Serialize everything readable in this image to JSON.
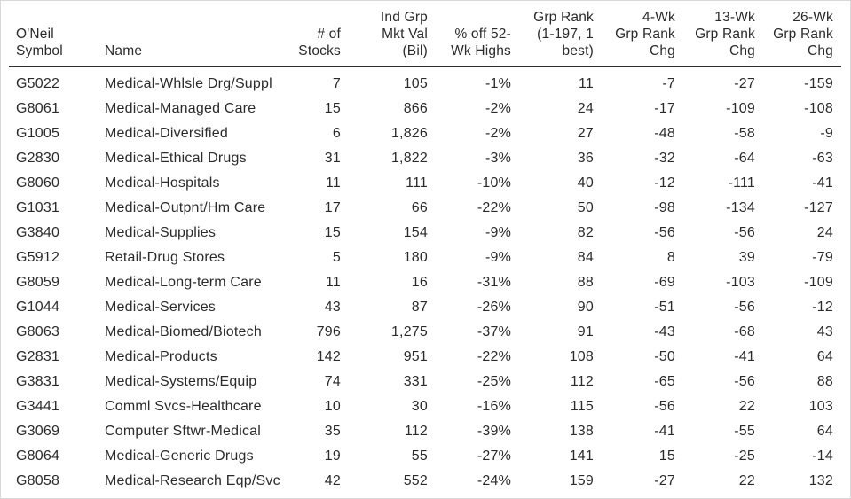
{
  "table": {
    "columns": [
      {
        "id": "symbol",
        "header": "O'Neil\nSymbol",
        "align": "left"
      },
      {
        "id": "name",
        "header": "Name",
        "align": "left"
      },
      {
        "id": "stocks",
        "header": "# of\nStocks",
        "align": "right"
      },
      {
        "id": "mkt_val",
        "header": "Ind Grp\nMkt Val\n(Bil)",
        "align": "right"
      },
      {
        "id": "pct_off",
        "header": "% off 52-\nWk Highs",
        "align": "right"
      },
      {
        "id": "grp_rank",
        "header": "Grp Rank\n(1-197, 1\nbest)",
        "align": "right"
      },
      {
        "id": "chg_4wk",
        "header": "4-Wk\nGrp Rank\nChg",
        "align": "right"
      },
      {
        "id": "chg_13wk",
        "header": "13-Wk\nGrp Rank\nChg",
        "align": "right"
      },
      {
        "id": "chg_26wk",
        "header": "26-Wk\nGrp Rank\nChg",
        "align": "right"
      }
    ],
    "rows": [
      [
        "G5022",
        "Medical-Whlsle Drg/Suppl",
        "7",
        "105",
        "-1%",
        "11",
        "-7",
        "-27",
        "-159"
      ],
      [
        "G8061",
        "Medical-Managed Care",
        "15",
        "866",
        "-2%",
        "24",
        "-17",
        "-109",
        "-108"
      ],
      [
        "G1005",
        "Medical-Diversified",
        "6",
        "1,826",
        "-2%",
        "27",
        "-48",
        "-58",
        "-9"
      ],
      [
        "G2830",
        "Medical-Ethical Drugs",
        "31",
        "1,822",
        "-3%",
        "36",
        "-32",
        "-64",
        "-63"
      ],
      [
        "G8060",
        "Medical-Hospitals",
        "11",
        "111",
        "-10%",
        "40",
        "-12",
        "-111",
        "-41"
      ],
      [
        "G1031",
        "Medical-Outpnt/Hm Care",
        "17",
        "66",
        "-22%",
        "50",
        "-98",
        "-134",
        "-127"
      ],
      [
        "G3840",
        "Medical-Supplies",
        "15",
        "154",
        "-9%",
        "82",
        "-56",
        "-56",
        "24"
      ],
      [
        "G5912",
        "Retail-Drug Stores",
        "5",
        "180",
        "-9%",
        "84",
        "8",
        "39",
        "-79"
      ],
      [
        "G8059",
        "Medical-Long-term Care",
        "11",
        "16",
        "-31%",
        "88",
        "-69",
        "-103",
        "-109"
      ],
      [
        "G1044",
        "Medical-Services",
        "43",
        "87",
        "-26%",
        "90",
        "-51",
        "-56",
        "-12"
      ],
      [
        "G8063",
        "Medical-Biomed/Biotech",
        "796",
        "1,275",
        "-37%",
        "91",
        "-43",
        "-68",
        "43"
      ],
      [
        "G2831",
        "Medical-Products",
        "142",
        "951",
        "-22%",
        "108",
        "-50",
        "-41",
        "64"
      ],
      [
        "G3831",
        "Medical-Systems/Equip",
        "74",
        "331",
        "-25%",
        "112",
        "-65",
        "-56",
        "88"
      ],
      [
        "G3441",
        "Comml Svcs-Healthcare",
        "10",
        "30",
        "-16%",
        "115",
        "-56",
        "22",
        "103"
      ],
      [
        "G3069",
        "Computer Sftwr-Medical",
        "35",
        "112",
        "-39%",
        "138",
        "-41",
        "-55",
        "64"
      ],
      [
        "G8064",
        "Medical-Generic Drugs",
        "19",
        "55",
        "-27%",
        "141",
        "15",
        "-25",
        "-14"
      ],
      [
        "G8058",
        "Medical-Research Eqp/Svc",
        "42",
        "552",
        "-24%",
        "159",
        "-27",
        "22",
        "132"
      ]
    ]
  },
  "colors": {
    "text": "#2b2b2b",
    "header_rule": "#2b2b2b",
    "frame_border": "#d8d8d8",
    "background": "#ffffff"
  }
}
